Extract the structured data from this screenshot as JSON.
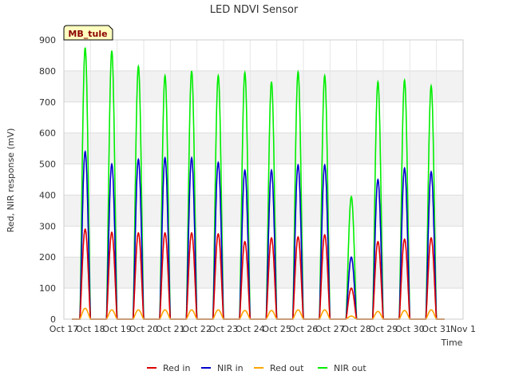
{
  "chart_data": {
    "type": "line",
    "title": "LED NDVI Sensor",
    "xlabel": "Time",
    "ylabel": "Red, NIR response (mV)",
    "annotation": "MB_tule",
    "xlim": [
      0,
      15
    ],
    "ylim": [
      0,
      900
    ],
    "yticks": [
      0,
      100,
      200,
      300,
      400,
      500,
      600,
      700,
      800,
      900
    ],
    "xtick_values": [
      0,
      1,
      2,
      3,
      4,
      5,
      6,
      7,
      8,
      9,
      10,
      11,
      12,
      13,
      14,
      15
    ],
    "xtick_labels": [
      "Oct 17",
      "Oct 18",
      "Oct 19",
      "Oct 20",
      "Oct 21",
      "Oct 22",
      "Oct 23",
      "Oct 24",
      "Oct 25",
      "Oct 26",
      "Oct 27",
      "Oct 28",
      "Oct 29",
      "Oct 30",
      "Oct 31",
      "Nov 1"
    ],
    "grid": true,
    "legend_position": "bottom",
    "series": [
      {
        "name": "Red in",
        "color": "#dd0000"
      },
      {
        "name": "NIR in",
        "color": "#0000cc"
      },
      {
        "name": "Red out",
        "color": "#ffa500"
      },
      {
        "name": "NIR out",
        "color": "#00ee00"
      }
    ],
    "daily_peaks": [
      {
        "day": "Oct 17",
        "red_in": 290,
        "nir_in": 540,
        "red_out": 35,
        "nir_out": 875
      },
      {
        "day": "Oct 18",
        "red_in": 280,
        "nir_in": 500,
        "red_out": 30,
        "nir_out": 865
      },
      {
        "day": "Oct 19",
        "red_in": 278,
        "nir_in": 515,
        "red_out": 30,
        "nir_out": 815
      },
      {
        "day": "Oct 20",
        "red_in": 278,
        "nir_in": 520,
        "red_out": 30,
        "nir_out": 785
      },
      {
        "day": "Oct 21",
        "red_in": 278,
        "nir_in": 520,
        "red_out": 30,
        "nir_out": 800
      },
      {
        "day": "Oct 22",
        "red_in": 275,
        "nir_in": 505,
        "red_out": 30,
        "nir_out": 785
      },
      {
        "day": "Oct 23",
        "red_in": 250,
        "nir_in": 480,
        "red_out": 28,
        "nir_out": 795
      },
      {
        "day": "Oct 24",
        "red_in": 262,
        "nir_in": 480,
        "red_out": 28,
        "nir_out": 765
      },
      {
        "day": "Oct 25",
        "red_in": 265,
        "nir_in": 497,
        "red_out": 30,
        "nir_out": 797
      },
      {
        "day": "Oct 26",
        "red_in": 272,
        "nir_in": 497,
        "red_out": 30,
        "nir_out": 785
      },
      {
        "day": "Oct 27",
        "red_in": 100,
        "nir_in": 200,
        "red_out": 10,
        "nir_out": 395
      },
      {
        "day": "Oct 28",
        "red_in": 250,
        "nir_in": 450,
        "red_out": 25,
        "nir_out": 765
      },
      {
        "day": "Oct 29",
        "red_in": 258,
        "nir_in": 487,
        "red_out": 28,
        "nir_out": 770
      },
      {
        "day": "Oct 30",
        "red_in": 262,
        "nir_in": 475,
        "red_out": 30,
        "nir_out": 752
      }
    ]
  }
}
